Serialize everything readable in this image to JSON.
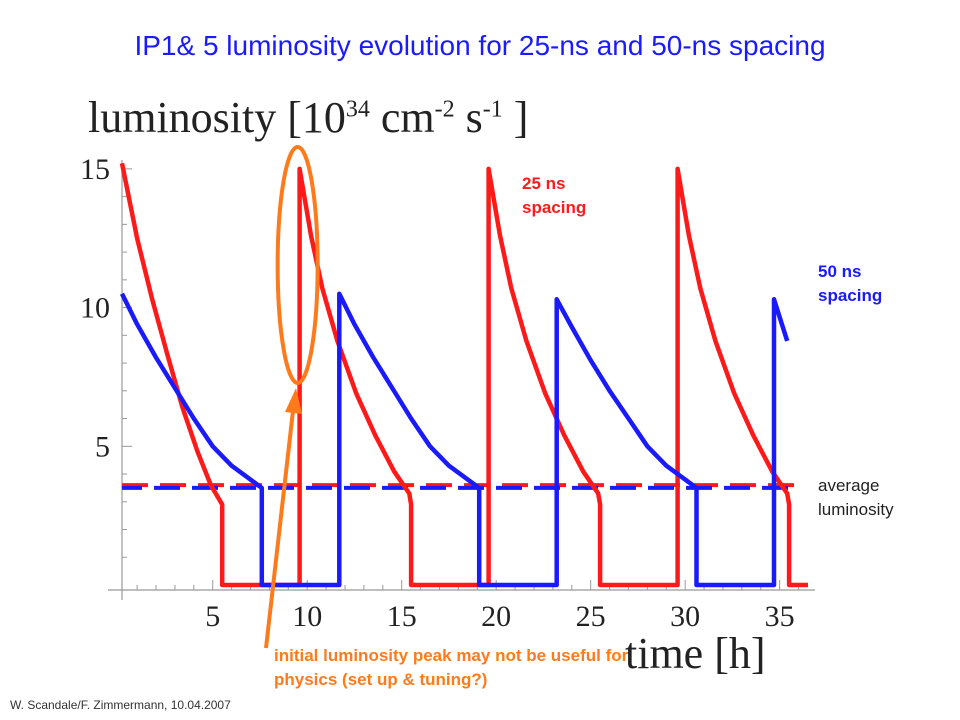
{
  "header": {
    "title": "IP1& 5 luminosity evolution for 25-ns and 50-ns spacing"
  },
  "axes": {
    "ylabel_main": "luminosity [10",
    "ylabel_exp1": "34",
    "ylabel_unit1": " cm",
    "ylabel_exp2": "-2",
    "ylabel_unit2": " s",
    "ylabel_exp3": "-1",
    "ylabel_end": " ]",
    "xlabel": "time [h]"
  },
  "annotations": {
    "red_label": "25 ns spacing",
    "blue_label": "50 ns spacing",
    "avg_label": "average luminosity",
    "peak_label": "initial luminosity peak may not be useful for physics (set up & tuning?)"
  },
  "footer": {
    "credit": "W. Scandale/F. Zimmermann, 10.04.2007"
  },
  "colors": {
    "series_25ns": "#ff1a1a",
    "series_50ns": "#1a1aff",
    "highlight": "#ff7a1a"
  },
  "chart_data": {
    "type": "line",
    "xlabel": "time [h]",
    "ylabel": "luminosity [10^34 cm^-2 s^-1 ]",
    "xlim": [
      0.2,
      36.5
    ],
    "ylim": [
      0,
      15.5
    ],
    "x_ticks": [
      5,
      10,
      15,
      20,
      25,
      30,
      35
    ],
    "y_ticks": [
      5,
      10,
      15
    ],
    "grid": false,
    "series": [
      {
        "name": "25 ns spacing",
        "color": "#ff1a1a",
        "points": [
          [
            0.2,
            15.2
          ],
          [
            1.0,
            12.5
          ],
          [
            1.8,
            10.3
          ],
          [
            2.6,
            8.3
          ],
          [
            3.4,
            6.4
          ],
          [
            4.2,
            4.8
          ],
          [
            4.9,
            3.6
          ],
          [
            5.5,
            2.9
          ],
          [
            5.5,
            0
          ],
          [
            9.6,
            0
          ],
          [
            9.6,
            15.0
          ],
          [
            10.2,
            12.6
          ],
          [
            10.8,
            10.7
          ],
          [
            11.6,
            8.8
          ],
          [
            12.6,
            6.9
          ],
          [
            13.6,
            5.4
          ],
          [
            14.6,
            4.1
          ],
          [
            15.4,
            3.3
          ],
          [
            15.5,
            2.9
          ],
          [
            15.5,
            0
          ],
          [
            19.6,
            0
          ],
          [
            19.6,
            15.0
          ],
          [
            20.2,
            12.6
          ],
          [
            20.8,
            10.7
          ],
          [
            21.6,
            8.8
          ],
          [
            22.6,
            6.9
          ],
          [
            23.6,
            5.4
          ],
          [
            24.6,
            4.1
          ],
          [
            25.4,
            3.3
          ],
          [
            25.5,
            2.9
          ],
          [
            25.5,
            0
          ],
          [
            29.6,
            0
          ],
          [
            29.6,
            15.0
          ],
          [
            30.2,
            12.6
          ],
          [
            30.8,
            10.7
          ],
          [
            31.6,
            8.8
          ],
          [
            32.6,
            6.9
          ],
          [
            33.6,
            5.4
          ],
          [
            34.6,
            4.1
          ],
          [
            35.4,
            3.3
          ],
          [
            35.5,
            2.9
          ],
          [
            35.5,
            0
          ],
          [
            36.5,
            0
          ]
        ]
      },
      {
        "name": "50 ns spacing",
        "color": "#1a1aff",
        "points": [
          [
            0.2,
            10.5
          ],
          [
            1.0,
            9.4
          ],
          [
            2.0,
            8.2
          ],
          [
            3.0,
            7.1
          ],
          [
            4.0,
            6.0
          ],
          [
            5.0,
            5.0
          ],
          [
            6.0,
            4.3
          ],
          [
            7.0,
            3.8
          ],
          [
            7.6,
            3.5
          ],
          [
            7.6,
            0
          ],
          [
            11.7,
            0
          ],
          [
            11.7,
            10.5
          ],
          [
            12.5,
            9.4
          ],
          [
            13.5,
            8.2
          ],
          [
            14.5,
            7.1
          ],
          [
            15.5,
            6.0
          ],
          [
            16.5,
            5.0
          ],
          [
            17.5,
            4.3
          ],
          [
            18.5,
            3.8
          ],
          [
            19.1,
            3.5
          ],
          [
            19.1,
            0
          ],
          [
            23.2,
            0
          ],
          [
            23.2,
            10.3
          ],
          [
            24.0,
            9.3
          ],
          [
            25.0,
            8.1
          ],
          [
            26.0,
            7.0
          ],
          [
            27.0,
            6.0
          ],
          [
            28.0,
            5.0
          ],
          [
            29.0,
            4.3
          ],
          [
            30.0,
            3.8
          ],
          [
            30.6,
            3.5
          ],
          [
            30.6,
            0
          ],
          [
            34.7,
            0
          ],
          [
            34.7,
            10.3
          ],
          [
            35.4,
            8.8
          ]
        ]
      }
    ],
    "reference_lines": [
      {
        "name": "average luminosity (25 ns)",
        "y": 3.6,
        "color": "#ff1a1a"
      },
      {
        "name": "average luminosity (50 ns)",
        "y": 3.5,
        "color": "#1a1aff"
      }
    ],
    "highlight_peak_x": 9.6
  }
}
